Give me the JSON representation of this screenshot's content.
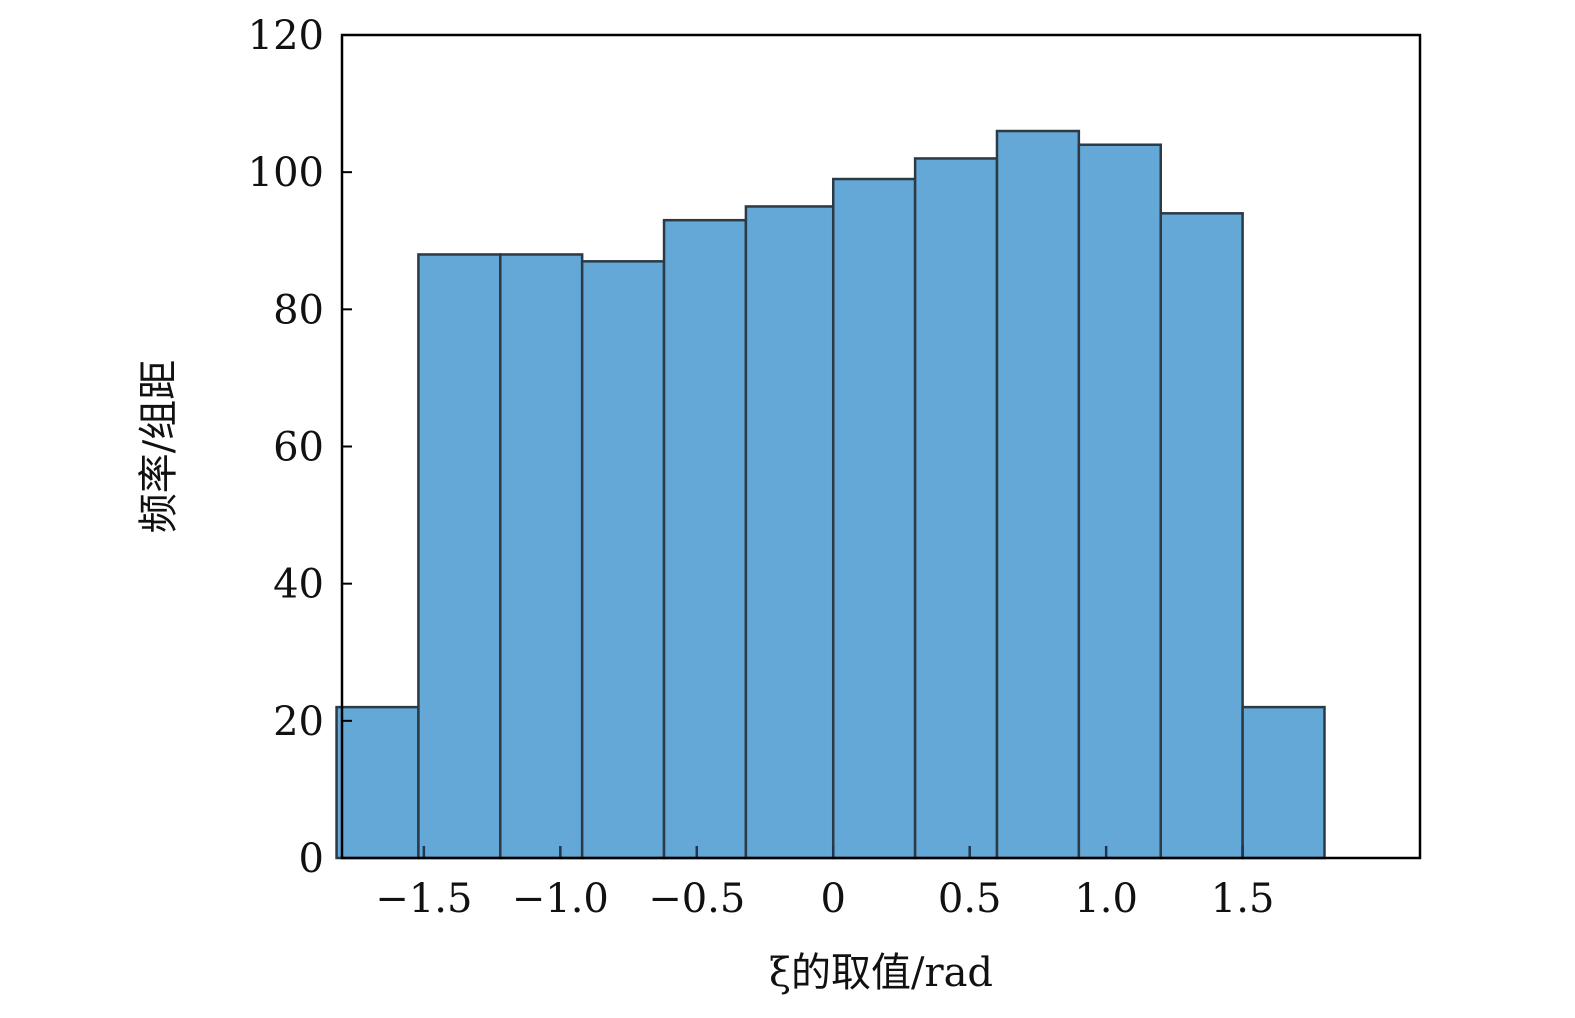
{
  "chart_data": {
    "type": "bar",
    "subtype": "histogram",
    "xlabel": "ξ的取值/rad",
    "ylabel": "频率/组距",
    "xlim": [
      -1.8,
      2.15
    ],
    "ylim": [
      0,
      120
    ],
    "xticks": [
      -1.5,
      -1.0,
      -0.5,
      0,
      0.5,
      1.0,
      1.5
    ],
    "xtick_labels": [
      "−1.5",
      "−1.0",
      "−0.5",
      "0",
      "0.5",
      "1.0",
      "1.5"
    ],
    "yticks": [
      0,
      20,
      40,
      60,
      80,
      100,
      120
    ],
    "ytick_labels": [
      "0",
      "20",
      "40",
      "60",
      "80",
      "100",
      "120"
    ],
    "bin_edges": [
      -1.82,
      -1.52,
      -1.22,
      -0.92,
      -0.62,
      -0.32,
      0.0,
      0.3,
      0.6,
      0.9,
      1.2,
      1.5,
      1.8
    ],
    "values": [
      22,
      88,
      88,
      87,
      93,
      95,
      99,
      102,
      106,
      104,
      94,
      22
    ],
    "grid": false,
    "legend": "none",
    "bar_color": "#64a8d7",
    "edge_color": "#2b3a45"
  }
}
